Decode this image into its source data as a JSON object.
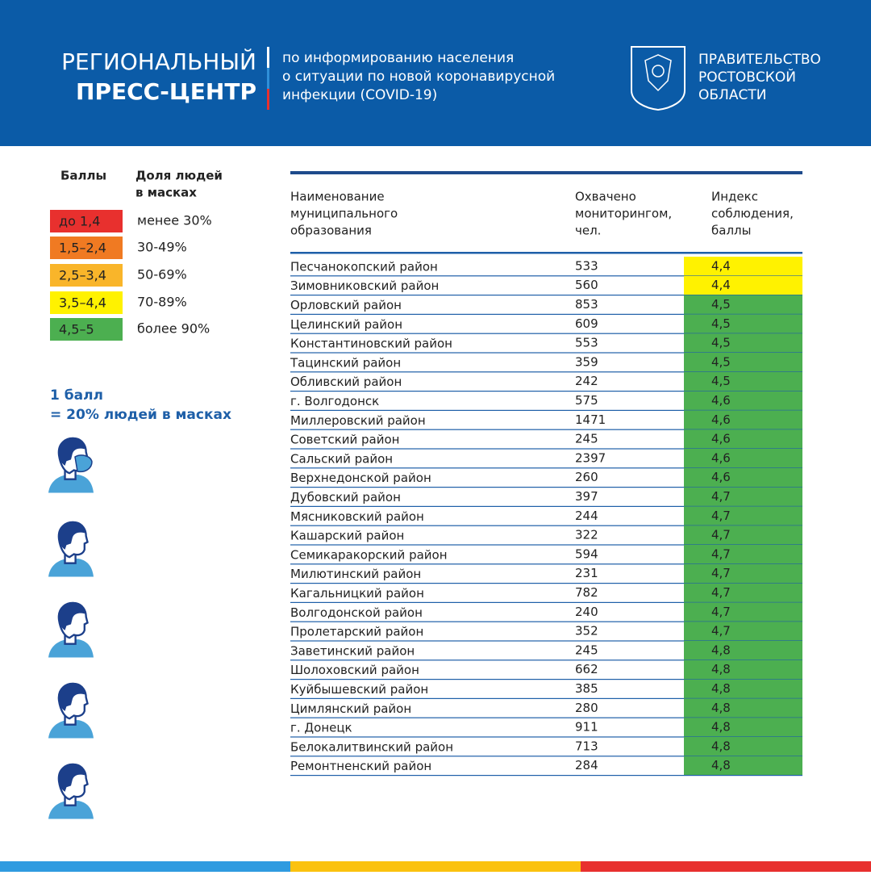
{
  "header": {
    "title_lines": [
      "РЕГИОНАЛЬНЫЙ",
      "ПРЕСС-ЦЕНТР"
    ],
    "subtitle_lines": [
      "по информированию населения",
      "о ситуации по новой коронавирусной",
      "инфекции (COVID-19)"
    ],
    "government_lines": [
      "ПРАВИТЕЛЬСТВО",
      "РОСТОВСКОЙ",
      "ОБЛАСТИ"
    ]
  },
  "legend": {
    "score_header": "Баллы",
    "share_header_lines": [
      "Доля людей",
      "в масках"
    ],
    "items": [
      {
        "score": "до 1,4",
        "share": "менее 30%",
        "color": "#e8302e"
      },
      {
        "score": "1,5–2,4",
        "share": "30-49%",
        "color": "#f07a22"
      },
      {
        "score": "2,5–3,4",
        "share": "50-69%",
        "color": "#f9b52a"
      },
      {
        "score": "3,5–4,4",
        "share": "70-89%",
        "color": "#fff200"
      },
      {
        "score": "4,5–5",
        "share": "более 90%",
        "color": "#4caf50"
      }
    ]
  },
  "note_lines": [
    "1 балл",
    "= 20% людей в масках"
  ],
  "table": {
    "columns": [
      [
        "Наименование",
        "муниципального",
        "образования"
      ],
      [
        "Охвачено",
        "мониторингом,",
        "чел."
      ],
      [
        "Индекс",
        "соблюдения,",
        "баллы"
      ]
    ],
    "rows": [
      {
        "name": "Песчанокопский район",
        "count": 533,
        "index": "4,4",
        "color": "#fff200"
      },
      {
        "name": "Зимовниковский район",
        "count": 560,
        "index": "4,4",
        "color": "#fff200"
      },
      {
        "name": "Орловский район",
        "count": 853,
        "index": "4,5",
        "color": "#4caf50"
      },
      {
        "name": "Целинский район",
        "count": 609,
        "index": "4,5",
        "color": "#4caf50"
      },
      {
        "name": "Константиновский район",
        "count": 553,
        "index": "4,5",
        "color": "#4caf50"
      },
      {
        "name": "Тацинский район",
        "count": 359,
        "index": "4,5",
        "color": "#4caf50"
      },
      {
        "name": "Обливский район",
        "count": 242,
        "index": "4,5",
        "color": "#4caf50"
      },
      {
        "name": "г. Волгодонск",
        "count": 575,
        "index": "4,6",
        "color": "#4caf50"
      },
      {
        "name": "Миллеровский район",
        "count": 1471,
        "index": "4,6",
        "color": "#4caf50"
      },
      {
        "name": "Советский район",
        "count": 245,
        "index": "4,6",
        "color": "#4caf50"
      },
      {
        "name": "Сальский район",
        "count": 2397,
        "index": "4,6",
        "color": "#4caf50"
      },
      {
        "name": "Верхнедонской район",
        "count": 260,
        "index": "4,6",
        "color": "#4caf50"
      },
      {
        "name": "Дубовский район",
        "count": 397,
        "index": "4,7",
        "color": "#4caf50"
      },
      {
        "name": "Мясниковский район",
        "count": 244,
        "index": "4,7",
        "color": "#4caf50"
      },
      {
        "name": "Кашарский район",
        "count": 322,
        "index": "4,7",
        "color": "#4caf50"
      },
      {
        "name": "Семикаракорский район",
        "count": 594,
        "index": "4,7",
        "color": "#4caf50"
      },
      {
        "name": "Милютинский район",
        "count": 231,
        "index": "4,7",
        "color": "#4caf50"
      },
      {
        "name": "Кагальницкий район",
        "count": 782,
        "index": "4,7",
        "color": "#4caf50"
      },
      {
        "name": "Волгодонской район",
        "count": 240,
        "index": "4,7",
        "color": "#4caf50"
      },
      {
        "name": "Пролетарский район",
        "count": 352,
        "index": "4,7",
        "color": "#4caf50"
      },
      {
        "name": "Заветинский район",
        "count": 245,
        "index": "4,8",
        "color": "#4caf50"
      },
      {
        "name": "Шолоховский район",
        "count": 662,
        "index": "4,8",
        "color": "#4caf50"
      },
      {
        "name": "Куйбышевский район",
        "count": 385,
        "index": "4,8",
        "color": "#4caf50"
      },
      {
        "name": "Цимлянский район",
        "count": 280,
        "index": "4,8",
        "color": "#4caf50"
      },
      {
        "name": "г. Донецк",
        "count": 911,
        "index": "4,8",
        "color": "#4caf50"
      },
      {
        "name": "Белокалитвинский район",
        "count": 713,
        "index": "4,8",
        "color": "#4caf50"
      },
      {
        "name": "Ремонтненский район",
        "count": 284,
        "index": "4,8",
        "color": "#4caf50"
      }
    ]
  }
}
